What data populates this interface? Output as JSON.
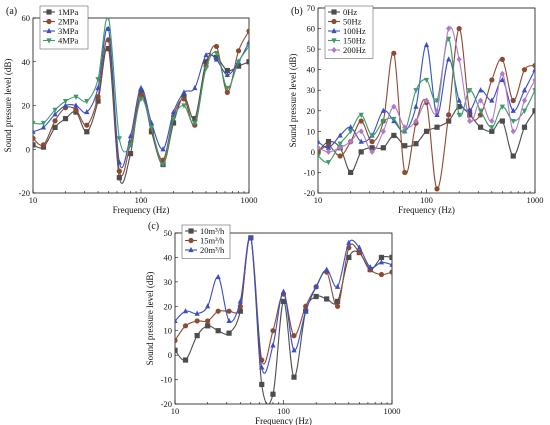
{
  "chart_data": [
    {
      "type": "line",
      "panel_label": "(a)",
      "xlabel": "Frequency (Hz)",
      "ylabel": "Sound pressure level (dB)",
      "xscale": "log",
      "xlim": [
        10,
        1000
      ],
      "ylim": [
        -20,
        60
      ],
      "xticks": [
        10,
        100,
        1000
      ],
      "yticks": [
        -20,
        0,
        20,
        40,
        60
      ],
      "x_tick_labels": [
        "10",
        "100",
        "1000"
      ],
      "y_tick_labels": [
        "-20",
        "0",
        "20",
        "40",
        "60"
      ],
      "legend_position": "top-left",
      "x": [
        10,
        12.5,
        16,
        20,
        25,
        31.5,
        40,
        50,
        63,
        80,
        100,
        125,
        160,
        200,
        250,
        315,
        400,
        500,
        630,
        800,
        1000
      ],
      "series": [
        {
          "name": "1MPa",
          "color": "#4d4d4d",
          "marker": "square",
          "values": [
            2,
            1,
            10,
            14,
            17,
            8,
            22,
            46,
            -13,
            -2,
            26,
            8,
            -7,
            12,
            24,
            14,
            40,
            42,
            36,
            38,
            40
          ]
        },
        {
          "name": "2MPa",
          "color": "#8b4a32",
          "marker": "circle",
          "values": [
            5,
            2,
            13,
            19,
            18,
            11,
            24,
            50,
            -10,
            3,
            25,
            9,
            -5,
            15,
            23,
            11,
            38,
            47,
            26,
            45,
            54
          ]
        },
        {
          "name": "3MPa",
          "color": "#3a4fc4",
          "marker": "triangle",
          "values": [
            8,
            10,
            16,
            20,
            20,
            17,
            28,
            55,
            -6,
            6,
            28,
            12,
            0,
            17,
            26,
            28,
            43,
            41,
            34,
            40,
            49
          ]
        },
        {
          "name": "4MPa",
          "color": "#3d9a6a",
          "marker": "triangle-down",
          "values": [
            12,
            12,
            18,
            22,
            24,
            22,
            32,
            60,
            5,
            2,
            23,
            10,
            -7,
            14,
            20,
            12,
            37,
            44,
            28,
            40,
            47
          ]
        }
      ]
    },
    {
      "type": "line",
      "panel_label": "(b)",
      "xlabel": "Frequency (Hz)",
      "ylabel": "Sound pressure level (dB)",
      "xscale": "log",
      "xlim": [
        10,
        1000
      ],
      "ylim": [
        -20,
        70
      ],
      "xticks": [
        10,
        100,
        1000
      ],
      "yticks": [
        -20,
        -10,
        0,
        10,
        20,
        30,
        40,
        50,
        60,
        70
      ],
      "x_tick_labels": [
        "10",
        "100",
        "1000"
      ],
      "y_tick_labels": [
        "-20",
        "-10",
        "0",
        "10",
        "20",
        "30",
        "40",
        "50",
        "60",
        "70"
      ],
      "legend_position": "top-left",
      "x": [
        10,
        12.5,
        16,
        20,
        25,
        31.5,
        40,
        50,
        63,
        80,
        100,
        125,
        160,
        200,
        250,
        315,
        400,
        500,
        630,
        800,
        1000
      ],
      "series": [
        {
          "name": "0Hz",
          "color": "#4d4d4d",
          "marker": "square",
          "values": [
            0,
            5,
            2,
            -10,
            0,
            2,
            2,
            8,
            3,
            4,
            10,
            12,
            15,
            22,
            18,
            12,
            10,
            15,
            -2,
            12,
            20
          ]
        },
        {
          "name": "50Hz",
          "color": "#8b4a32",
          "marker": "circle",
          "values": [
            0,
            3,
            -2,
            5,
            15,
            5,
            15,
            48,
            -10,
            14,
            24,
            -18,
            18,
            60,
            20,
            18,
            35,
            45,
            25,
            40,
            42
          ]
        },
        {
          "name": "100Hz",
          "color": "#3a4fc4",
          "marker": "triangle",
          "values": [
            5,
            2,
            8,
            12,
            5,
            8,
            20,
            15,
            10,
            22,
            52,
            18,
            45,
            25,
            20,
            30,
            25,
            35,
            20,
            30,
            40
          ]
        },
        {
          "name": "150Hz",
          "color": "#3d9a6a",
          "marker": "triangle-down",
          "values": [
            -2,
            -5,
            4,
            10,
            18,
            8,
            15,
            16,
            10,
            30,
            35,
            25,
            55,
            18,
            30,
            20,
            12,
            22,
            15,
            20,
            30
          ]
        },
        {
          "name": "200Hz",
          "color": "#b07ac8",
          "marker": "diamond",
          "values": [
            2,
            0,
            2,
            5,
            10,
            0,
            10,
            22,
            12,
            15,
            25,
            20,
            60,
            45,
            15,
            25,
            15,
            38,
            10,
            25,
            35
          ]
        }
      ]
    },
    {
      "type": "line",
      "panel_label": "(c)",
      "xlabel": "Frequency (Hz)",
      "ylabel": "Sound pressure level (dB)",
      "xscale": "log",
      "xlim": [
        10,
        1000
      ],
      "ylim": [
        -20,
        50
      ],
      "xticks": [
        10,
        100,
        1000
      ],
      "yticks": [
        -20,
        -10,
        0,
        10,
        20,
        30,
        40,
        50
      ],
      "x_tick_labels": [
        "10",
        "100",
        "1000"
      ],
      "y_tick_labels": [
        "-20",
        "-10",
        "0",
        "10",
        "20",
        "30",
        "40",
        "50"
      ],
      "legend_position": "top-left",
      "x": [
        10,
        12.5,
        16,
        20,
        25,
        31.5,
        40,
        50,
        63,
        80,
        100,
        125,
        160,
        200,
        250,
        315,
        400,
        500,
        630,
        800,
        1000
      ],
      "series": [
        {
          "name": "10m³/h",
          "color": "#4d4d4d",
          "marker": "square",
          "values": [
            2,
            -2,
            8,
            12,
            10,
            9,
            18,
            48,
            -12,
            -16,
            22,
            -9,
            18,
            24,
            23,
            22,
            40,
            42,
            35,
            40,
            40
          ]
        },
        {
          "name": "15m³/h",
          "color": "#8b4a32",
          "marker": "circle",
          "values": [
            6,
            12,
            14,
            14,
            18,
            18,
            20,
            48,
            -2,
            10,
            25,
            8,
            20,
            28,
            34,
            20,
            44,
            42,
            35,
            33,
            34
          ]
        },
        {
          "name": "20m³/h",
          "color": "#3a4fc4",
          "marker": "triangle",
          "values": [
            14,
            18,
            17,
            20,
            32,
            14,
            22,
            48,
            -5,
            4,
            26,
            2,
            18,
            28,
            35,
            28,
            46,
            44,
            36,
            38,
            37
          ]
        }
      ]
    }
  ]
}
